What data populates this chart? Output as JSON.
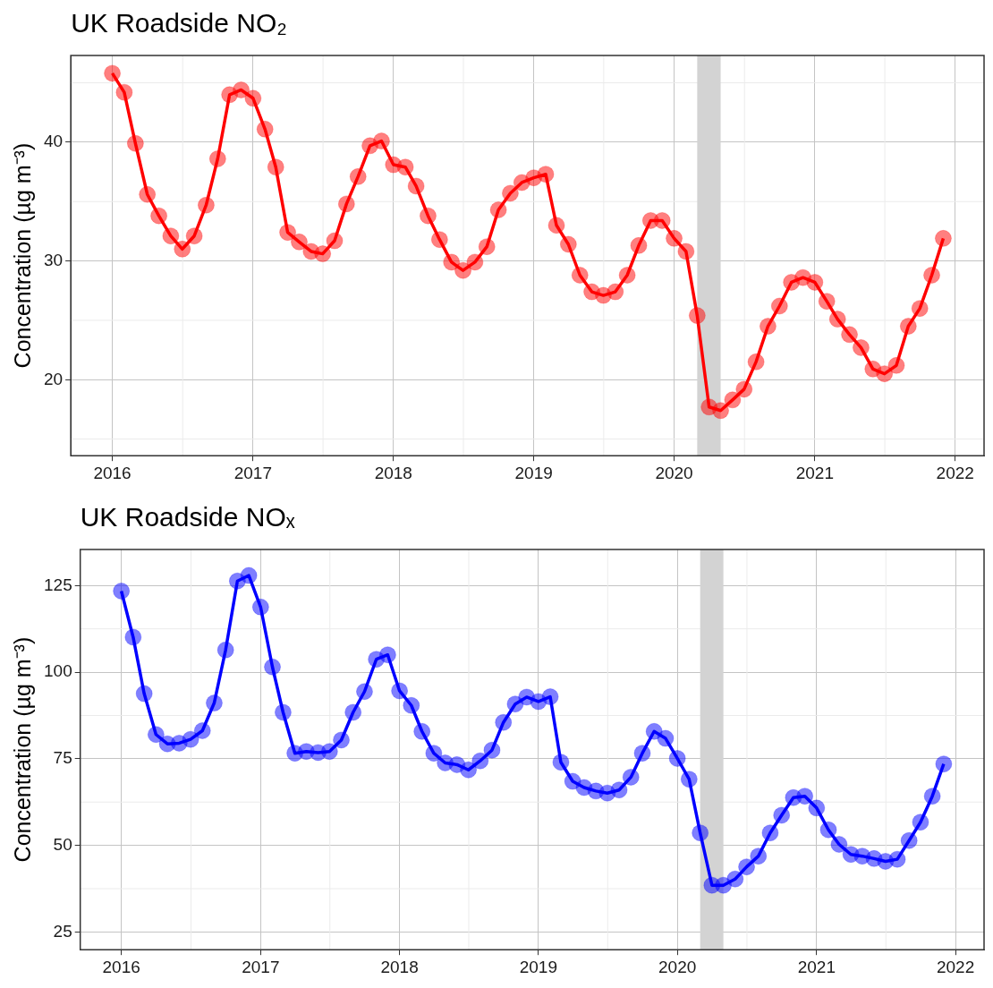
{
  "chart_data": [
    {
      "type": "line",
      "title": "UK Roadside NO₂",
      "ylabel": "Concentration (µg m⁻³)",
      "x": [
        "2016-01",
        "2016-02",
        "2016-03",
        "2016-04",
        "2016-05",
        "2016-06",
        "2016-07",
        "2016-08",
        "2016-09",
        "2016-10",
        "2016-11",
        "2016-12",
        "2017-01",
        "2017-02",
        "2017-03",
        "2017-04",
        "2017-05",
        "2017-06",
        "2017-07",
        "2017-08",
        "2017-09",
        "2017-10",
        "2017-11",
        "2017-12",
        "2018-01",
        "2018-02",
        "2018-03",
        "2018-04",
        "2018-05",
        "2018-06",
        "2018-07",
        "2018-08",
        "2018-09",
        "2018-10",
        "2018-11",
        "2018-12",
        "2019-01",
        "2019-02",
        "2019-03",
        "2019-04",
        "2019-05",
        "2019-06",
        "2019-07",
        "2019-08",
        "2019-09",
        "2019-10",
        "2019-11",
        "2019-12",
        "2020-01",
        "2020-02",
        "2020-03",
        "2020-04",
        "2020-05",
        "2020-06",
        "2020-07",
        "2020-08",
        "2020-09",
        "2020-10",
        "2020-11",
        "2020-12",
        "2021-01",
        "2021-02",
        "2021-03",
        "2021-04",
        "2021-05",
        "2021-06",
        "2021-07",
        "2021-08",
        "2021-09",
        "2021-10",
        "2021-11",
        "2021-12"
      ],
      "series": [
        {
          "color": "#ff0000",
          "values": [
            45.8,
            44.2,
            39.9,
            35.6,
            33.8,
            32.1,
            31.0,
            32.1,
            34.7,
            38.6,
            44.0,
            44.4,
            43.7,
            41.1,
            37.9,
            32.4,
            31.6,
            30.8,
            30.6,
            31.7,
            34.8,
            37.1,
            39.7,
            40.1,
            38.1,
            37.9,
            36.3,
            33.8,
            31.8,
            29.9,
            29.2,
            29.9,
            31.2,
            34.3,
            35.7,
            36.6,
            37.0,
            37.3,
            33.0,
            31.4,
            28.8,
            27.4,
            27.1,
            27.4,
            28.8,
            31.3,
            33.4,
            33.4,
            31.9,
            30.8,
            25.4,
            17.7,
            17.4,
            18.3,
            19.2,
            21.5,
            24.5,
            26.2,
            28.2,
            28.6,
            28.2,
            26.6,
            25.1,
            23.8,
            22.7,
            20.9,
            20.5,
            21.2,
            24.5,
            26.0,
            28.8,
            31.9
          ]
        }
      ],
      "xlim": [
        "2015-09-15",
        "2022-03-17"
      ],
      "xticks": [
        "2016",
        "2017",
        "2018",
        "2019",
        "2020",
        "2021",
        "2022"
      ],
      "ylim": [
        13.6,
        47.3
      ],
      "yticks": [
        20,
        30,
        40
      ],
      "bands": [
        {
          "axis": "x",
          "from": "2020-03-01",
          "to": "2020-05-01",
          "color": "#d3d3d3"
        }
      ],
      "grid": true,
      "legend": false,
      "marker": "circle",
      "line_style": "solid"
    },
    {
      "type": "line",
      "title": "UK Roadside NOₓ",
      "ylabel": "Concentration (µg m⁻³)",
      "x": [
        "2016-01",
        "2016-02",
        "2016-03",
        "2016-04",
        "2016-05",
        "2016-06",
        "2016-07",
        "2016-08",
        "2016-09",
        "2016-10",
        "2016-11",
        "2016-12",
        "2017-01",
        "2017-02",
        "2017-03",
        "2017-04",
        "2017-05",
        "2017-06",
        "2017-07",
        "2017-08",
        "2017-09",
        "2017-10",
        "2017-11",
        "2017-12",
        "2018-01",
        "2018-02",
        "2018-03",
        "2018-04",
        "2018-05",
        "2018-06",
        "2018-07",
        "2018-08",
        "2018-09",
        "2018-10",
        "2018-11",
        "2018-12",
        "2019-01",
        "2019-02",
        "2019-03",
        "2019-04",
        "2019-05",
        "2019-06",
        "2019-07",
        "2019-08",
        "2019-09",
        "2019-10",
        "2019-11",
        "2019-12",
        "2020-01",
        "2020-02",
        "2020-03",
        "2020-04",
        "2020-05",
        "2020-06",
        "2020-07",
        "2020-08",
        "2020-09",
        "2020-10",
        "2020-11",
        "2020-12",
        "2021-01",
        "2021-02",
        "2021-03",
        "2021-04",
        "2021-05",
        "2021-06",
        "2021-07",
        "2021-08",
        "2021-09",
        "2021-10",
        "2021-11",
        "2021-12"
      ],
      "series": [
        {
          "color": "#0000ff",
          "values": [
            123.4,
            110.1,
            93.8,
            82.0,
            79.3,
            79.5,
            80.6,
            83.1,
            91.1,
            106.4,
            126.3,
            127.9,
            118.8,
            101.5,
            88.4,
            76.6,
            77.1,
            76.8,
            77.1,
            80.4,
            88.4,
            94.4,
            103.7,
            105.0,
            94.6,
            90.4,
            82.9,
            76.6,
            73.8,
            73.3,
            71.8,
            74.4,
            77.5,
            85.5,
            90.8,
            92.8,
            91.5,
            92.9,
            74.0,
            68.5,
            66.7,
            65.7,
            65.1,
            66.0,
            69.7,
            76.6,
            82.9,
            80.9,
            75.1,
            69.1,
            53.6,
            38.5,
            38.5,
            40.3,
            43.8,
            46.9,
            53.6,
            58.7,
            63.8,
            64.2,
            60.8,
            54.5,
            50.3,
            47.4,
            46.9,
            46.2,
            45.4,
            46.0,
            51.4,
            56.7,
            64.2,
            73.5
          ]
        }
      ],
      "xlim": [
        "2015-09-15",
        "2022-03-17"
      ],
      "xticks": [
        "2016",
        "2017",
        "2018",
        "2019",
        "2020",
        "2021",
        "2022"
      ],
      "ylim": [
        19.9,
        135.4
      ],
      "yticks": [
        25,
        50,
        75,
        100,
        125
      ],
      "bands": [
        {
          "axis": "x",
          "from": "2020-03-01",
          "to": "2020-05-01",
          "color": "#d3d3d3"
        }
      ],
      "grid": true,
      "legend": false,
      "marker": "circle",
      "line_style": "solid"
    }
  ]
}
